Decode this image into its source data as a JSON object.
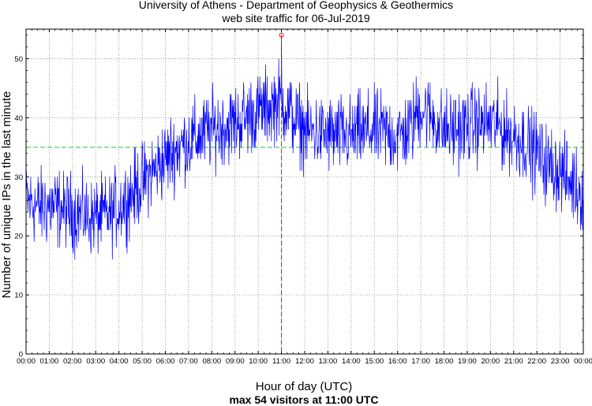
{
  "chart_data": {
    "type": "line",
    "title": "University of Athens - Department of Geophysics & Geothermics",
    "subtitle": "web site traffic for 06-Jul-2019",
    "xlabel": "Hour of day (UTC)",
    "ylabel": "Number of unique IPs in the last minute",
    "summary": "max 54 visitors at 11:00 UTC",
    "xlim": [
      0,
      24
    ],
    "ylim": [
      0,
      55
    ],
    "x_ticks": [
      "00:00",
      "01:00",
      "02:00",
      "03:00",
      "04:00",
      "05:00",
      "06:00",
      "07:00",
      "08:00",
      "09:00",
      "10:00",
      "11:00",
      "12:00",
      "13:00",
      "14:00",
      "15:00",
      "16:00",
      "17:00",
      "18:00",
      "19:00",
      "20:00",
      "21:00",
      "22:00",
      "23:00",
      "00:00"
    ],
    "y_ticks": [
      0,
      10,
      20,
      30,
      40,
      50
    ],
    "grid": true,
    "mean_line": 35,
    "max": {
      "x": 11,
      "y": 54
    },
    "hourly_profile": {
      "x_hours": [
        0,
        0.5,
        1,
        1.5,
        2,
        2.5,
        3,
        3.5,
        4,
        4.5,
        5,
        5.5,
        6,
        6.5,
        7,
        7.5,
        8,
        8.5,
        9,
        9.5,
        10,
        10.5,
        11,
        11.5,
        12,
        12.5,
        13,
        13.5,
        14,
        14.5,
        15,
        15.5,
        16,
        16.5,
        17,
        17.5,
        18,
        18.5,
        19,
        19.5,
        20,
        20.5,
        21,
        21.5,
        22,
        22.5,
        23,
        23.5,
        24
      ],
      "y_mean": [
        26,
        25,
        25,
        24.5,
        24,
        23.5,
        23,
        23.5,
        25,
        27,
        29,
        31,
        33,
        35,
        36,
        37,
        38,
        38.5,
        39,
        40,
        41,
        42,
        43,
        40,
        38,
        37.5,
        37,
        37,
        37,
        37.5,
        38,
        37.5,
        37,
        38,
        42,
        40,
        38,
        38,
        38.5,
        39,
        39,
        38,
        37,
        36,
        34,
        32,
        31,
        29,
        27
      ],
      "noise_amplitude": 5
    },
    "series_color": "#0000ff",
    "mean_color": "#00dd00",
    "max_color": "#ff0000"
  }
}
